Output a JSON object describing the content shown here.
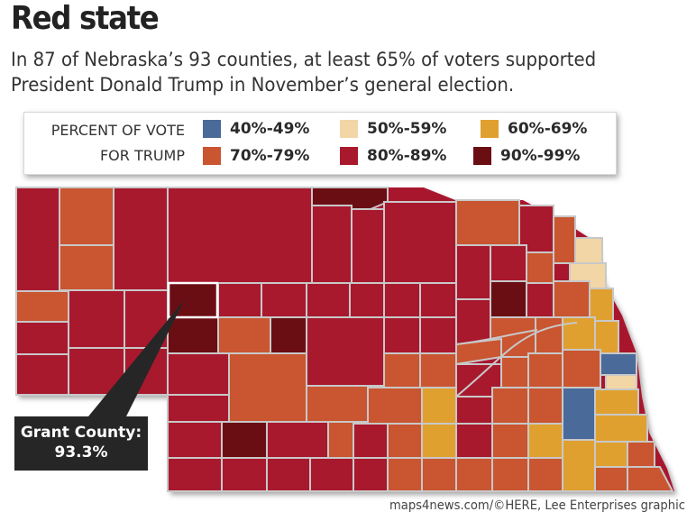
{
  "headline": "Red state",
  "subhead": "In 87 of Nebraska’s 93 counties, at least 65% of voters supported President Donald Trump in November’s general election.",
  "legend": {
    "title_line1": "PERCENT OF VOTE",
    "title_line2": "FOR TRUMP",
    "items": [
      {
        "label": "40%-49%",
        "color": "#4a6a9a"
      },
      {
        "label": "50%-59%",
        "color": "#f2d6a6"
      },
      {
        "label": "60%-69%",
        "color": "#e0a030"
      },
      {
        "label": "70%-79%",
        "color": "#c95531"
      },
      {
        "label": "80%-89%",
        "color": "#a8192e"
      },
      {
        "label": "90%-99%",
        "color": "#6b0e14"
      }
    ]
  },
  "callout": {
    "name": "Grant County:",
    "value": "93.3%"
  },
  "credit": "maps4news.com/©HERE, Lee Enterprises graphic"
}
